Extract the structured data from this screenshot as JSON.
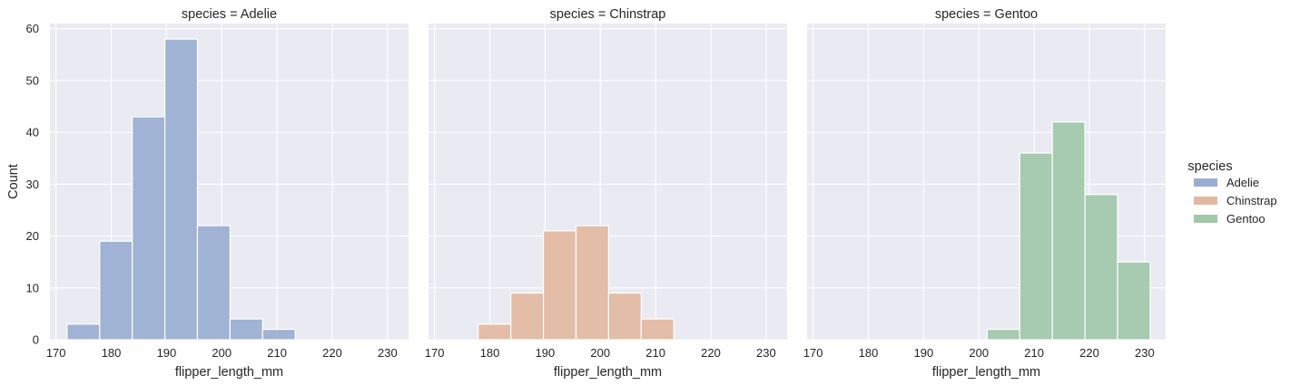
{
  "figure": {
    "background": "#ffffff",
    "plot_background": "#eaeaf2",
    "grid_color": "#ffffff"
  },
  "chart_data": {
    "type": "bar",
    "subtype": "faceted histogram",
    "facet_variable": "species",
    "xlabel": "flipper_length_mm",
    "ylabel": "Count",
    "xlim": [
      168.9,
      233.8
    ],
    "ylim": [
      0,
      61
    ],
    "xticks": [
      170,
      180,
      190,
      200,
      210,
      220,
      230
    ],
    "yticks": [
      0,
      10,
      20,
      30,
      40,
      50,
      60
    ],
    "grid": true,
    "bin_edges": [
      172.0,
      177.9,
      183.8,
      189.7,
      195.6,
      201.5,
      207.4,
      213.3,
      219.2,
      225.1,
      231.0
    ],
    "legend": {
      "title": "species",
      "position": "right",
      "entries": [
        {
          "label": "Adelie",
          "color": "#9aaed2"
        },
        {
          "label": "Chinstrap",
          "color": "#e2b8a2"
        },
        {
          "label": "Gentoo",
          "color": "#a0c8aa"
        }
      ]
    },
    "series": [
      {
        "name": "Adelie",
        "title": "species = Adelie",
        "color": "#9aaed2",
        "values": [
          3,
          19,
          43,
          58,
          22,
          4,
          2,
          0,
          0,
          0
        ]
      },
      {
        "name": "Chinstrap",
        "title": "species = Chinstrap",
        "color": "#e2b8a2",
        "values": [
          0,
          3,
          9,
          21,
          22,
          9,
          4,
          0,
          0,
          0
        ]
      },
      {
        "name": "Gentoo",
        "title": "species = Gentoo",
        "color": "#a0c8aa",
        "values": [
          0,
          0,
          0,
          0,
          0,
          2,
          36,
          42,
          28,
          15
        ]
      }
    ]
  }
}
